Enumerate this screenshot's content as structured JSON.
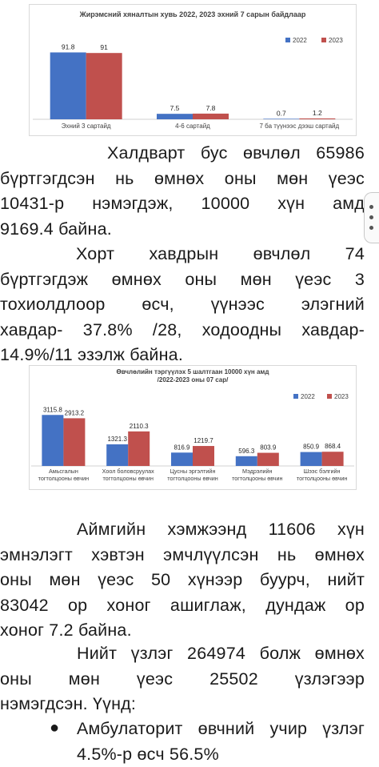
{
  "charts": [
    {
      "type": "bar",
      "title": "Жирэмсний хяналтын хувь 2022, 2023 эхний 7 сарын байдлаар",
      "categories": [
        "Эхний 3 сартайд",
        "4-6 сартайд",
        "7 ба түүнээс дээш сартайд"
      ],
      "series": [
        {
          "name": "2022",
          "values": [
            91.8,
            7.5,
            0.7
          ],
          "color": "#4472c4"
        },
        {
          "name": "2023",
          "values": [
            91,
            7.8,
            1.2
          ],
          "color": "#c0504d"
        }
      ],
      "labels": [
        [
          "91.8",
          "7.5",
          "0.7"
        ],
        [
          "91",
          "7.8",
          "1.2"
        ]
      ],
      "ylim": [
        0,
        100
      ],
      "legend": "top-right",
      "grid": false
    },
    {
      "type": "bar",
      "title_lines": [
        "Өвчлөлийн тэргүүлэх 5 шалтгаан 10000 хүн амд",
        "/2022-2023 оны 07 сар/"
      ],
      "categories": [
        [
          "Амьсгалын",
          "тогтолцооны өвчин"
        ],
        [
          "Хоол боловсруулах",
          "тогтолцооны өвчин"
        ],
        [
          "Цусны эргэлтийн",
          "тогтолцооны өвчин"
        ],
        [
          "Мэдрэлийн",
          "тогтолцооны өвчин"
        ],
        [
          "Шээс бэлгийн",
          "тогтолцооны өвчин"
        ]
      ],
      "series": [
        {
          "name": "2022",
          "values": [
            3115.8,
            1321.3,
            816.9,
            596.3,
            850.9
          ],
          "color": "#4472c4"
        },
        {
          "name": "2023",
          "values": [
            2913.2,
            2110.3,
            1219.7,
            803.9,
            868.4
          ],
          "color": "#c0504d"
        }
      ],
      "labels": [
        [
          "3115.8",
          "1321.3",
          "816.9",
          "596.3",
          "850.9"
        ],
        [
          "2913.2",
          "2110.3",
          "1219.7",
          "803.9",
          "868.4"
        ]
      ],
      "ylim": [
        0,
        3300
      ],
      "legend": "top-right",
      "grid": false
    }
  ],
  "paragraphs": {
    "p1": [
      "Халдварт бус өвчлөл 65986",
      "бүртгэгдсэн нь өмнөх оны мөн үеэс",
      "10431-р нэмэгдэж, 10000 хүн амд",
      "9169.4 байна."
    ],
    "p2": [
      "Хорт хавдрын өвчлөл 74",
      "бүртгэгдэж өмнөх оны мөн үеэс 3",
      "тохиолдлоор өсч, үүнээс элэгний",
      "хавдар- 37.8% /28, ходоодны хавдар-",
      "14.9%/11 эзэлж байна."
    ],
    "p3": [
      "Аймгийн хэмжээнд 11606 хүн",
      "эмнэлэгт хэвтэн эмчлүүлсэн нь өмнөх",
      "оны мөн үеэс 50 хүнээр буурч, нийт",
      "83042 ор хоног ашиглаж, дундаж ор",
      "хоног 7.2 байна."
    ],
    "p4": [
      "Нийт үзлэг 264974 болж өмнөх",
      "оны мөн үеэс 25502 үзлэгээр",
      "нэмэгдсэн. Үүнд:"
    ],
    "bullet": [
      "Амбулаторит өвчний учир үзлэг",
      "4.5%-р өсч 56.5%"
    ],
    "bullet_symbol": "●"
  }
}
